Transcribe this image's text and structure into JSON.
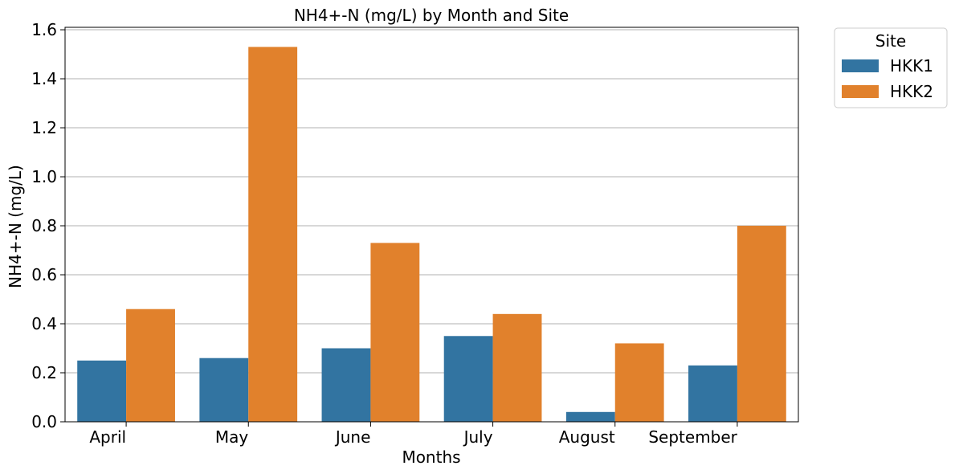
{
  "chart_data": {
    "type": "bar",
    "title": "NH4+-N (mg/L) by Month and Site",
    "xlabel": "Months",
    "ylabel": "NH4+-N (mg/L)",
    "categories": [
      "April",
      "May",
      "June",
      "July",
      "August",
      "September"
    ],
    "series": [
      {
        "name": "HKK1",
        "color": "#3274a1",
        "values": [
          0.25,
          0.26,
          0.3,
          0.35,
          0.04,
          0.23
        ]
      },
      {
        "name": "HKK2",
        "color": "#e1812c",
        "values": [
          0.46,
          1.53,
          0.73,
          0.44,
          0.32,
          0.8
        ]
      }
    ],
    "ylim": [
      0,
      1.61
    ],
    "yticks": [
      0.0,
      0.2,
      0.4,
      0.6,
      0.8,
      1.0,
      1.2,
      1.4,
      1.6
    ],
    "ytick_labels": [
      "0.0",
      "0.2",
      "0.4",
      "0.6",
      "0.8",
      "1.0",
      "1.2",
      "1.4",
      "1.6"
    ],
    "grid": "y",
    "legend": {
      "title": "Site",
      "placement": "outside-top-right"
    }
  }
}
